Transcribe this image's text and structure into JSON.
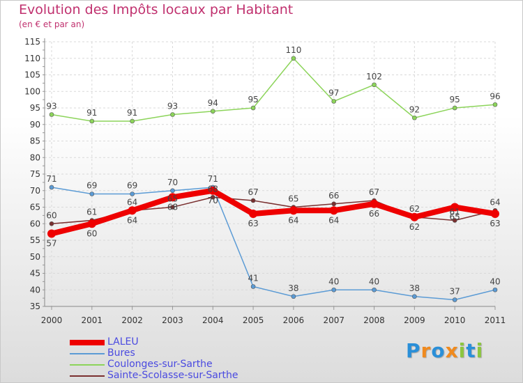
{
  "header": {
    "title": "Evolution des Impôts locaux par Habitant",
    "subtitle": "(en € et par an)"
  },
  "chart_data": {
    "type": "line",
    "title": "Evolution des Impôts locaux par Habitant",
    "subtitle": "(en € et par an)",
    "xlabel": "",
    "ylabel": "",
    "x": [
      "2000",
      "2001",
      "2002",
      "2003",
      "2004",
      "2005",
      "2006",
      "2007",
      "2008",
      "2009",
      "2010",
      "2011"
    ],
    "ylim": [
      35,
      115
    ],
    "yticks": [
      35,
      40,
      45,
      50,
      55,
      60,
      65,
      70,
      75,
      80,
      85,
      90,
      95,
      100,
      105,
      110,
      115
    ],
    "grid": true,
    "legend_position": "bottom-left",
    "series": [
      {
        "name": "LALEU",
        "color": "#ee0000",
        "values": [
          57,
          60,
          64,
          68,
          70,
          63,
          64,
          64,
          66,
          62,
          65,
          63
        ]
      },
      {
        "name": "Bures",
        "color": "#5b9bd5",
        "values": [
          71,
          69,
          69,
          70,
          71,
          41,
          38,
          40,
          40,
          38,
          37,
          40
        ]
      },
      {
        "name": "Coulonges-sur-Sarthe",
        "color": "#8cd45a",
        "values": [
          93,
          91,
          91,
          93,
          94,
          95,
          110,
          97,
          102,
          92,
          95,
          96
        ]
      },
      {
        "name": "Sainte-Scolasse-sur-Sarthe",
        "color": "#7a2f2f",
        "values": [
          60,
          61,
          64,
          65,
          68,
          67,
          65,
          66,
          67,
          62,
          61,
          64
        ]
      }
    ]
  },
  "logo": {
    "letters": [
      "P",
      "r",
      "o",
      "x",
      "i",
      "t",
      "i"
    ],
    "colors": [
      "#2a8fd8",
      "#f08a1e",
      "#2a8fd8",
      "#f08a1e",
      "#8cc63f",
      "#2a8fd8",
      "#8cc63f"
    ]
  }
}
